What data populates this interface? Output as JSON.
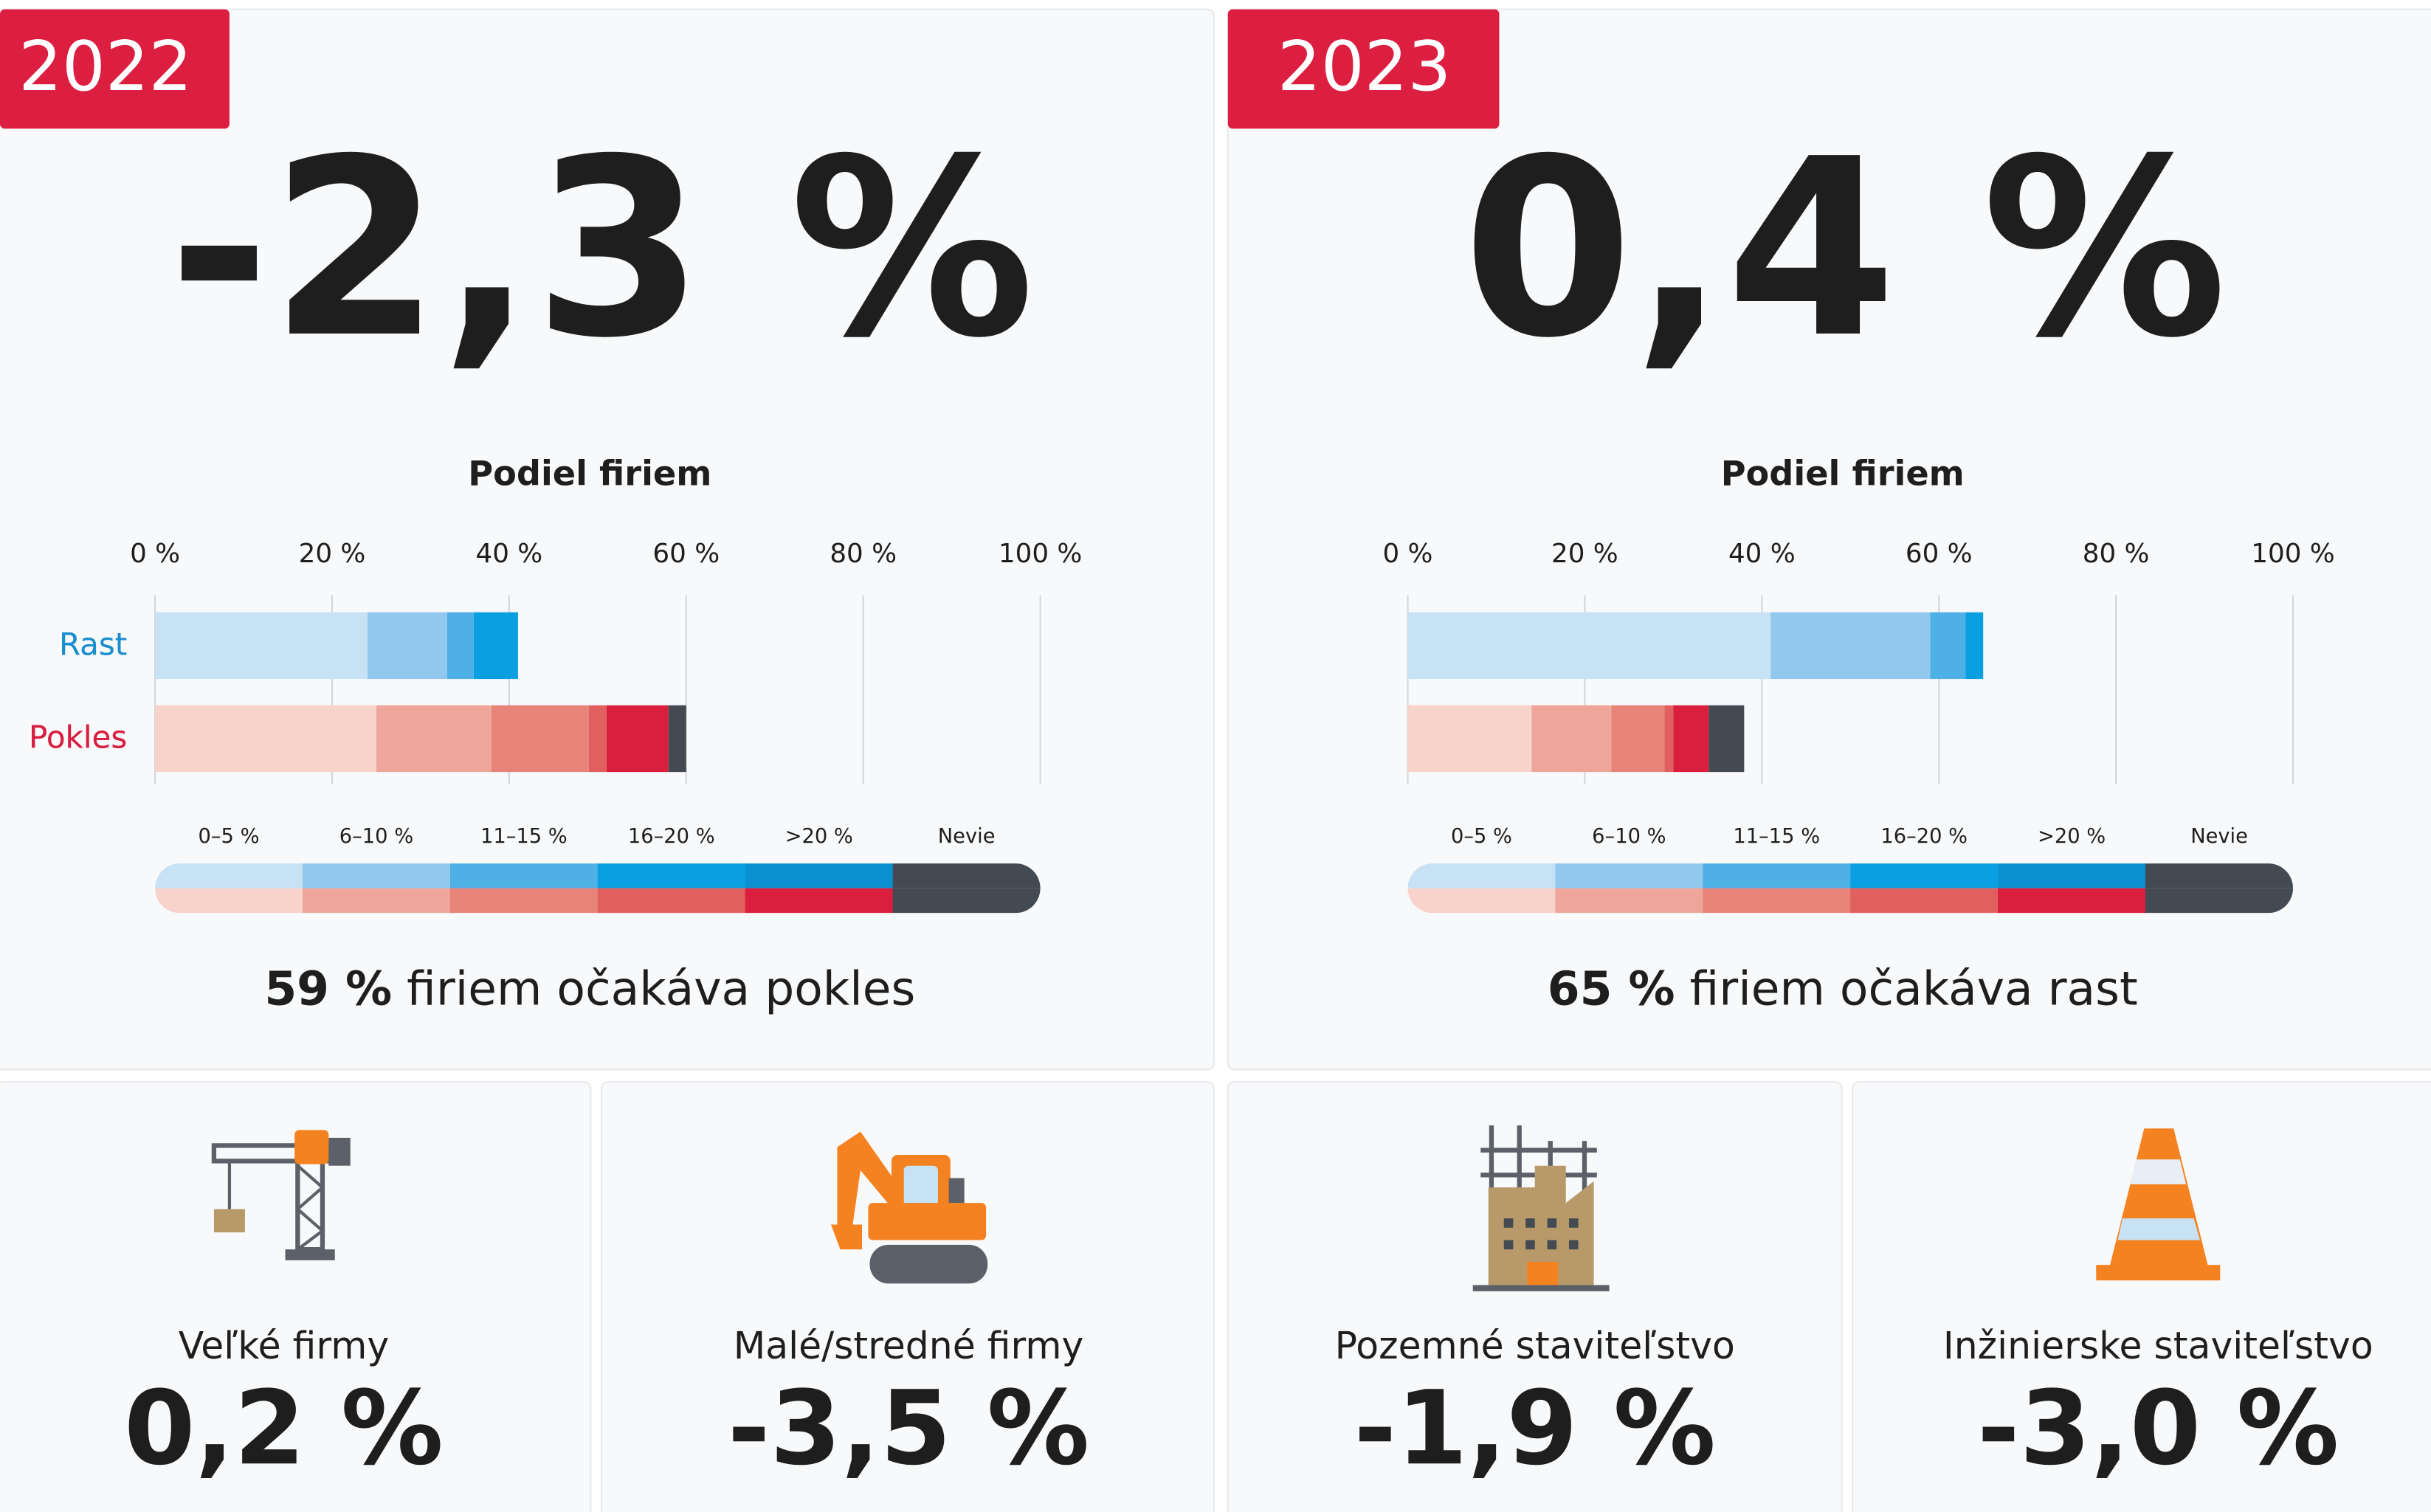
{
  "chart_data": [
    {
      "type": "stacked-bar",
      "tag": "2022",
      "headline": "-2,3 %",
      "title": "Podiel firiem",
      "categories": [
        "Rast",
        "Pokles"
      ],
      "category_colors": [
        "#1a8fd0",
        "#d81e40"
      ],
      "series": [
        {
          "name": "0–5 %",
          "colors": [
            "#c8e2f5",
            "#f8d3cc"
          ],
          "values": [
            24,
            25
          ]
        },
        {
          "name": "6–10 %",
          "colors": [
            "#93c8ee",
            "#eea69a"
          ],
          "values": [
            9,
            13
          ]
        },
        {
          "name": "11–15 %",
          "colors": [
            "#4fb0e6",
            "#e8837a"
          ],
          "values": [
            3,
            11
          ]
        },
        {
          "name": "16–20 %",
          "colors": [
            "#0a9fe0",
            "#e06060"
          ],
          "values": [
            5,
            2
          ]
        },
        {
          "name": ">20 %",
          "colors": [
            "#0a8fd0",
            "#da1e3e"
          ],
          "values": [
            0,
            7
          ]
        },
        {
          "name": "Nevie",
          "colors": [
            "#434a52",
            "#434a52"
          ],
          "values": [
            0,
            2
          ]
        }
      ],
      "xlim": [
        0,
        100
      ],
      "xticks": [
        {
          "value": 0,
          "label": "0 %"
        },
        {
          "value": 20,
          "label": "20 %"
        },
        {
          "value": 40,
          "label": "40 %"
        },
        {
          "value": 60,
          "label": "60 %"
        },
        {
          "value": 80,
          "label": "80 %"
        },
        {
          "value": 100,
          "label": "100 %"
        }
      ],
      "grid": true,
      "summary_value": "59 %",
      "summary_text": "firiem očakáva pokles"
    },
    {
      "type": "stacked-bar",
      "tag": "2023",
      "headline": "0,4 %",
      "title": "Podiel firiem",
      "categories": [
        "Rast",
        "Pokles"
      ],
      "category_colors": [
        "#1a8fd0",
        "#d81e40"
      ],
      "series": [
        {
          "name": "0–5 %",
          "colors": [
            "#c8e2f5",
            "#f8d3cc"
          ],
          "values": [
            41,
            14
          ]
        },
        {
          "name": "6–10 %",
          "colors": [
            "#93c8ee",
            "#eea69a"
          ],
          "values": [
            18,
            9
          ]
        },
        {
          "name": "11–15 %",
          "colors": [
            "#4fb0e6",
            "#e8837a"
          ],
          "values": [
            4,
            6
          ]
        },
        {
          "name": "16–20 %",
          "colors": [
            "#0a9fe0",
            "#e06060"
          ],
          "values": [
            2,
            1
          ]
        },
        {
          "name": ">20 %",
          "colors": [
            "#0a8fd0",
            "#da1e3e"
          ],
          "values": [
            0,
            4
          ]
        },
        {
          "name": "Nevie",
          "colors": [
            "#434a52",
            "#434a52"
          ],
          "values": [
            0,
            4
          ]
        }
      ],
      "xlim": [
        0,
        100
      ],
      "xticks": [
        {
          "value": 0,
          "label": "0 %"
        },
        {
          "value": 20,
          "label": "20 %"
        },
        {
          "value": 40,
          "label": "40 %"
        },
        {
          "value": 60,
          "label": "60 %"
        },
        {
          "value": 80,
          "label": "80 %"
        },
        {
          "value": 100,
          "label": "100 %"
        }
      ],
      "grid": true,
      "summary_value": "65 %",
      "summary_text": "firiem očakáva rast"
    }
  ],
  "segments": [
    {
      "label": "Veľké firmy",
      "value": "0,2 %"
    },
    {
      "label": "Malé/stredné firmy",
      "value": "-3,5 %"
    },
    {
      "label": "Pozemné staviteľstvo",
      "value": "-1,9 %"
    },
    {
      "label": "Inžinierske staviteľstvo",
      "value": "-3,0 %"
    }
  ]
}
